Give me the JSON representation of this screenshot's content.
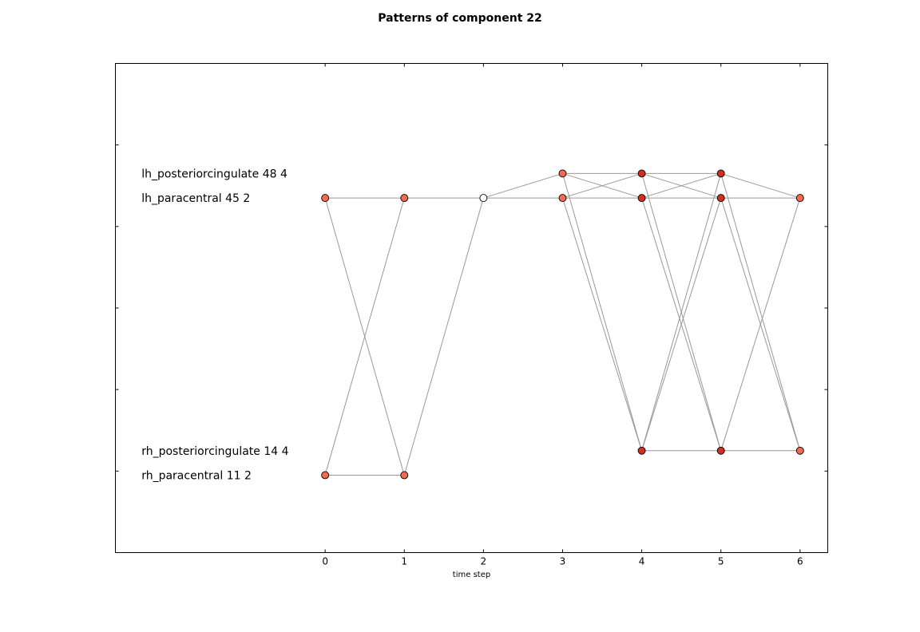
{
  "chart_data": {
    "type": "scatter",
    "title": "Patterns of component 22",
    "xlabel": "time step",
    "ylabel": "",
    "xlim": [
      -2.65,
      6.35
    ],
    "ylim": [
      -4,
      8
    ],
    "x_ticks": [
      0,
      1,
      2,
      3,
      4,
      5,
      6
    ],
    "y_ticks": [
      -2,
      0,
      2,
      4,
      6
    ],
    "grid": false,
    "row_labels": [
      {
        "text": "lh_posteriorcingulate 48 4",
        "y": 5.3
      },
      {
        "text": "lh_paracentral 45 2",
        "y": 4.7
      },
      {
        "text": "rh_posteriorcingulate 14 4",
        "y": -1.5
      },
      {
        "text": "rh_paracentral 11 2",
        "y": -2.1
      }
    ],
    "nodes": [
      {
        "id": "a0",
        "x": 0,
        "y": 4.7,
        "color": "#f26b4f"
      },
      {
        "id": "b0",
        "x": 0,
        "y": -2.1,
        "color": "#f26b4f"
      },
      {
        "id": "a1",
        "x": 1,
        "y": 4.7,
        "color": "#f26b4f"
      },
      {
        "id": "b1",
        "x": 1,
        "y": -2.1,
        "color": "#f26b4f"
      },
      {
        "id": "a2",
        "x": 2,
        "y": 4.7,
        "color": "#ffffff"
      },
      {
        "id": "p3",
        "x": 3,
        "y": 5.3,
        "color": "#f26b4f"
      },
      {
        "id": "a3",
        "x": 3,
        "y": 4.7,
        "color": "#f26b4f"
      },
      {
        "id": "p4",
        "x": 4,
        "y": 5.3,
        "color": "#d42d22"
      },
      {
        "id": "a4",
        "x": 4,
        "y": 4.7,
        "color": "#d42d22"
      },
      {
        "id": "r4",
        "x": 4,
        "y": -1.5,
        "color": "#d42d22"
      },
      {
        "id": "p5",
        "x": 5,
        "y": 5.3,
        "color": "#d42d22"
      },
      {
        "id": "a5",
        "x": 5,
        "y": 4.7,
        "color": "#d42d22"
      },
      {
        "id": "r5",
        "x": 5,
        "y": -1.5,
        "color": "#d42d22"
      },
      {
        "id": "a6",
        "x": 6,
        "y": 4.7,
        "color": "#f26b4f"
      },
      {
        "id": "r6",
        "x": 6,
        "y": -1.5,
        "color": "#f26b4f"
      }
    ],
    "edges": [
      [
        "a0",
        "a1"
      ],
      [
        "a0",
        "b1"
      ],
      [
        "b0",
        "a1"
      ],
      [
        "b0",
        "b1"
      ],
      [
        "a1",
        "a2"
      ],
      [
        "b1",
        "a2"
      ],
      [
        "a2",
        "a3"
      ],
      [
        "a2",
        "p3"
      ],
      [
        "p3",
        "p4"
      ],
      [
        "p3",
        "a4"
      ],
      [
        "p3",
        "r4"
      ],
      [
        "a3",
        "a4"
      ],
      [
        "a3",
        "p4"
      ],
      [
        "a3",
        "r4"
      ],
      [
        "p4",
        "p5"
      ],
      [
        "p4",
        "a5"
      ],
      [
        "p4",
        "r5"
      ],
      [
        "a4",
        "a5"
      ],
      [
        "a4",
        "p5"
      ],
      [
        "a4",
        "r5"
      ],
      [
        "r4",
        "r5"
      ],
      [
        "r4",
        "p5"
      ],
      [
        "r4",
        "a5"
      ],
      [
        "p5",
        "a6"
      ],
      [
        "p5",
        "r6"
      ],
      [
        "a5",
        "a6"
      ],
      [
        "a5",
        "r6"
      ],
      [
        "r5",
        "r6"
      ],
      [
        "r5",
        "a6"
      ]
    ],
    "colors": {
      "edge": "#999999",
      "node_stroke": "#000000",
      "frame": "#000000"
    }
  }
}
